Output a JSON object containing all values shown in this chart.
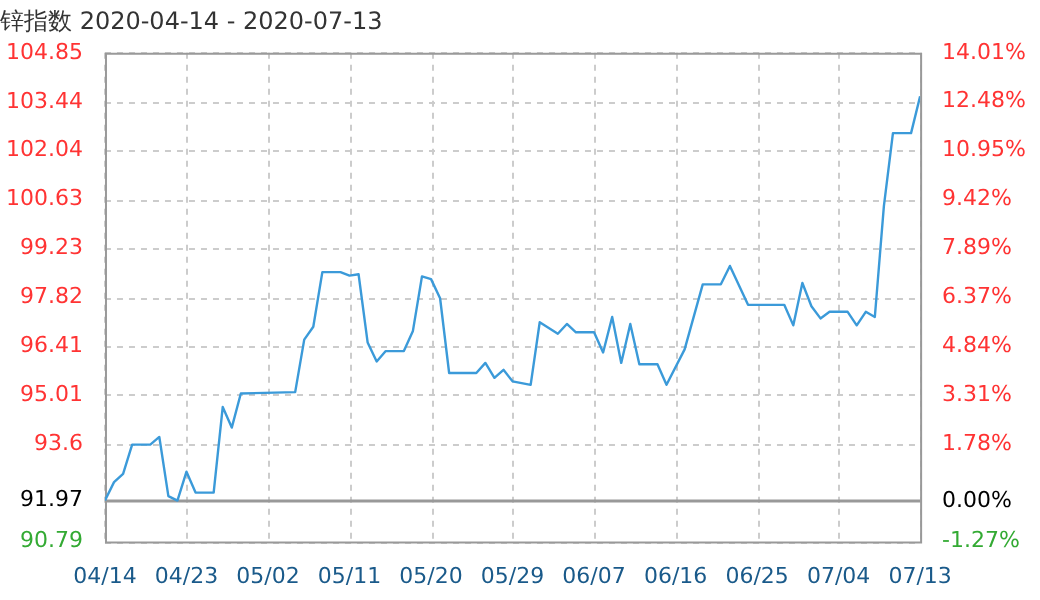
{
  "chart_data": {
    "type": "line",
    "title": "锌指数 2020-04-14 - 2020-07-13",
    "x": [
      "2020-04-14",
      "2020-04-15",
      "2020-04-16",
      "2020-04-17",
      "2020-04-19",
      "2020-04-20",
      "2020-04-21",
      "2020-04-22",
      "2020-04-23",
      "2020-04-24",
      "2020-04-26",
      "2020-04-27",
      "2020-04-28",
      "2020-04-29",
      "2020-05-05",
      "2020-05-06",
      "2020-05-07",
      "2020-05-08",
      "2020-05-10",
      "2020-05-11",
      "2020-05-12",
      "2020-05-13",
      "2020-05-14",
      "2020-05-15",
      "2020-05-17",
      "2020-05-18",
      "2020-05-19",
      "2020-05-20",
      "2020-05-21",
      "2020-05-22",
      "2020-05-25",
      "2020-05-26",
      "2020-05-27",
      "2020-05-28",
      "2020-05-29",
      "2020-05-31",
      "2020-06-01",
      "2020-06-03",
      "2020-06-04",
      "2020-06-05",
      "2020-06-07",
      "2020-06-08",
      "2020-06-09",
      "2020-06-10",
      "2020-06-11",
      "2020-06-12",
      "2020-06-14",
      "2020-06-15",
      "2020-06-17",
      "2020-06-19",
      "2020-06-21",
      "2020-06-22",
      "2020-06-24",
      "2020-06-28",
      "2020-06-29",
      "2020-06-30",
      "2020-07-01",
      "2020-07-02",
      "2020-07-03",
      "2020-07-05",
      "2020-07-06",
      "2020-07-07",
      "2020-07-08",
      "2020-07-09",
      "2020-07-10",
      "2020-07-12",
      "2020-07-13"
    ],
    "series": [
      {
        "color": "#3b9ad9",
        "values": [
          91.97,
          92.5,
          92.74,
          93.58,
          93.58,
          93.8,
          92.1,
          91.97,
          92.8,
          92.2,
          92.2,
          94.66,
          94.07,
          95.05,
          95.09,
          96.6,
          96.97,
          98.54,
          98.54,
          98.44,
          98.48,
          96.52,
          95.97,
          96.27,
          96.27,
          96.85,
          98.42,
          98.34,
          97.79,
          95.64,
          95.64,
          95.93,
          95.5,
          95.73,
          95.4,
          95.3,
          97.1,
          96.77,
          97.05,
          96.81,
          96.81,
          96.23,
          97.25,
          95.93,
          97.05,
          95.89,
          95.89,
          95.3,
          96.32,
          98.19,
          98.19,
          98.72,
          97.6,
          97.6,
          97.01,
          98.23,
          97.56,
          97.21,
          97.4,
          97.4,
          97.01,
          97.4,
          97.25,
          100.44,
          102.54,
          102.54,
          103.6
        ]
      }
    ],
    "xlim": [
      "2020-04-14",
      "2020-07-13"
    ],
    "xticks": [
      {
        "value": "2020-04-14",
        "label": "04/14"
      },
      {
        "value": "2020-04-23",
        "label": "04/23"
      },
      {
        "value": "2020-05-02",
        "label": "05/02"
      },
      {
        "value": "2020-05-11",
        "label": "05/11"
      },
      {
        "value": "2020-05-20",
        "label": "05/20"
      },
      {
        "value": "2020-05-29",
        "label": "05/29"
      },
      {
        "value": "2020-06-07",
        "label": "06/07"
      },
      {
        "value": "2020-06-16",
        "label": "06/16"
      },
      {
        "value": "2020-06-25",
        "label": "06/25"
      },
      {
        "value": "2020-07-04",
        "label": "07/04"
      },
      {
        "value": "2020-07-13",
        "label": "07/13"
      }
    ],
    "ylim": [
      90.79,
      104.85
    ],
    "yticks": [
      90.79,
      91.97,
      93.6,
      95.01,
      96.41,
      97.82,
      99.23,
      100.63,
      102.04,
      103.44,
      104.85
    ],
    "y2lim": [
      -1.27,
      14.01
    ],
    "y2ticks": [
      {
        "value": -1.27,
        "label": "-1.27%"
      },
      {
        "value": 0,
        "label": "0.00%"
      },
      {
        "value": 1.78,
        "label": "1.78%"
      },
      {
        "value": 3.31,
        "label": "3.31%"
      },
      {
        "value": 4.84,
        "label": "4.84%"
      },
      {
        "value": 6.37,
        "label": "6.37%"
      },
      {
        "value": 7.89,
        "label": "7.89%"
      },
      {
        "value": 9.42,
        "label": "9.42%"
      },
      {
        "value": 10.95,
        "label": "10.95%"
      },
      {
        "value": 12.48,
        "label": "12.48%"
      },
      {
        "value": 14.01,
        "label": "14.01%"
      }
    ],
    "ref_lines": [
      {
        "axis": "y",
        "value": 91.97,
        "color": "#999999",
        "line_style": "solid"
      }
    ],
    "grid": true,
    "marker": "none",
    "line_style": "solid",
    "legend": false
  }
}
